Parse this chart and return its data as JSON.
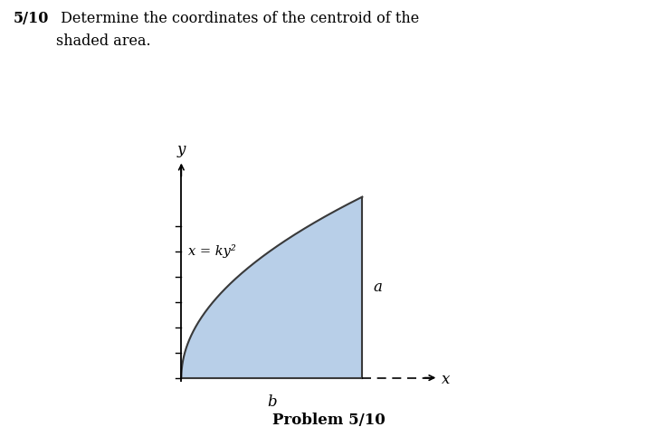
{
  "title_bold": "5/10",
  "title_normal": " Determine the coordinates of the centroid of the",
  "title_line2": "shaded area.",
  "problem_label": "Problem 5/10",
  "equation_label": "x = ky²",
  "label_a": "a",
  "label_b": "b",
  "label_x": "x",
  "label_y": "y",
  "shade_color": "#b8cfe8",
  "shade_edge_color": "#3a3a3a",
  "background_color": "#ffffff",
  "fig_width": 7.26,
  "fig_height": 4.93,
  "dpi": 100
}
